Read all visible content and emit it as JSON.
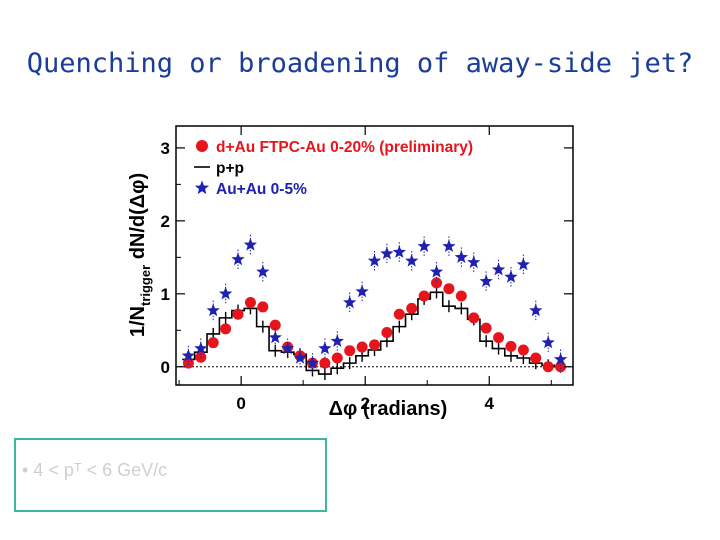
{
  "slide": {
    "title": "Quenching or broadening of away-side jet?",
    "note": "• 4 < pᵀ < 6 GeV/c"
  },
  "chart_data": {
    "type": "scatter",
    "xlabel": "Δφ (radians)",
    "ylabel": "1/Nₜᵣᵢₑₑₑᵣ dN/d(Δφ)",
    "ylabel_main": "1/N",
    "ylabel_sub": "trigger",
    "ylabel_tail": " dN/d(Δφ)",
    "xlim": [
      -1.05,
      5.35
    ],
    "ylim": [
      -0.25,
      3.3
    ],
    "xticks": [
      "0",
      "2",
      "4"
    ],
    "xtick_values": [
      0,
      2,
      4
    ],
    "yticks": [
      "0",
      "1",
      "2",
      "3"
    ],
    "ytick_values": [
      0,
      1,
      2,
      3
    ],
    "legend_position": "top-left",
    "series": [
      {
        "name": "d+Au FTPC-Au 0-20% (preliminary)",
        "marker": "circle",
        "color": "#e8141c",
        "x": [
          -0.85,
          -0.65,
          -0.45,
          -0.25,
          -0.05,
          0.15,
          0.35,
          0.55,
          0.75,
          0.95,
          1.15,
          1.35,
          1.55,
          1.75,
          1.95,
          2.15,
          2.35,
          2.55,
          2.75,
          2.95,
          3.15,
          3.35,
          3.55,
          3.75,
          3.95,
          4.15,
          4.35,
          4.55,
          4.75,
          4.95,
          5.15
        ],
        "y": [
          0.05,
          0.13,
          0.33,
          0.52,
          0.72,
          0.88,
          0.82,
          0.57,
          0.27,
          0.15,
          0.05,
          0.05,
          0.12,
          0.22,
          0.27,
          0.3,
          0.47,
          0.72,
          0.8,
          0.97,
          1.15,
          1.07,
          0.97,
          0.67,
          0.53,
          0.4,
          0.28,
          0.23,
          0.12,
          0.0,
          0.0
        ]
      },
      {
        "name": "p+p",
        "marker": "step",
        "color": "#000000",
        "x": [
          -0.85,
          -0.65,
          -0.45,
          -0.25,
          -0.05,
          0.15,
          0.35,
          0.55,
          0.75,
          0.95,
          1.15,
          1.35,
          1.55,
          1.75,
          1.95,
          2.15,
          2.35,
          2.55,
          2.75,
          2.95,
          3.15,
          3.35,
          3.55,
          3.75,
          3.95,
          4.15,
          4.35,
          4.55,
          4.75,
          4.95,
          5.15
        ],
        "y": [
          0.1,
          0.2,
          0.45,
          0.67,
          0.77,
          0.8,
          0.55,
          0.22,
          0.2,
          0.17,
          -0.05,
          -0.1,
          -0.02,
          0.05,
          0.15,
          0.23,
          0.35,
          0.55,
          0.72,
          0.93,
          1.02,
          0.83,
          0.8,
          0.65,
          0.35,
          0.25,
          0.15,
          0.12,
          0.05,
          0.02,
          0.0
        ]
      },
      {
        "name": "Au+Au 0-5%",
        "marker": "star",
        "color": "#1f22b0",
        "x": [
          -0.85,
          -0.65,
          -0.45,
          -0.25,
          -0.05,
          0.15,
          0.35,
          0.55,
          0.75,
          0.95,
          1.15,
          1.35,
          1.55,
          1.75,
          1.95,
          2.15,
          2.35,
          2.55,
          2.75,
          2.95,
          3.15,
          3.35,
          3.55,
          3.75,
          3.95,
          4.15,
          4.35,
          4.55,
          4.75,
          4.95,
          5.15
        ],
        "y": [
          0.15,
          0.25,
          0.77,
          1.0,
          1.47,
          1.67,
          1.3,
          0.4,
          0.25,
          0.12,
          0.05,
          0.25,
          0.35,
          0.88,
          1.03,
          1.45,
          1.55,
          1.57,
          1.45,
          1.65,
          1.3,
          1.65,
          1.5,
          1.43,
          1.17,
          1.33,
          1.23,
          1.4,
          0.77,
          0.33,
          0.1
        ]
      }
    ]
  }
}
